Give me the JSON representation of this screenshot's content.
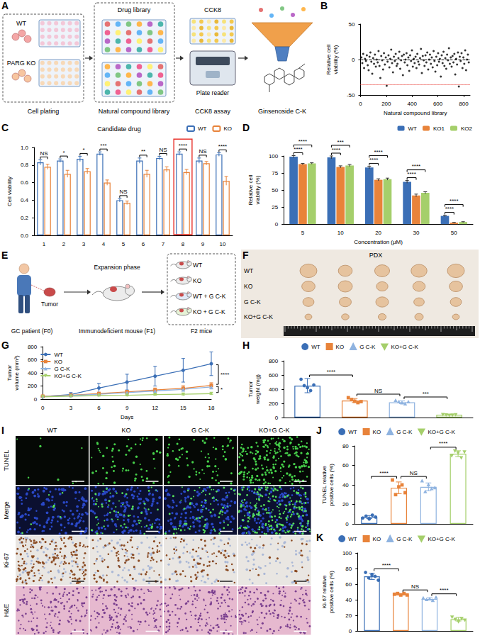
{
  "chart_data": [
    {
      "panel": "B",
      "type": "scatter",
      "x_label": "Natural compound library",
      "y_label": "Relative cell viability (%)",
      "x": [
        7,
        14,
        21,
        28,
        35,
        42,
        49,
        56,
        63,
        70,
        77,
        84,
        91,
        98,
        105,
        112,
        119,
        126,
        133,
        140,
        147,
        154,
        161,
        168,
        175,
        182,
        189,
        196,
        203,
        210,
        217,
        224,
        231,
        238,
        245,
        252,
        259,
        266,
        273,
        280,
        287,
        294,
        301,
        308,
        315,
        322,
        329,
        336,
        343,
        350,
        357,
        364,
        371,
        378,
        385,
        392,
        399,
        406,
        413,
        420,
        427,
        434,
        441,
        448,
        455,
        462,
        469,
        476,
        483,
        490,
        497,
        504,
        511,
        518,
        525,
        532,
        539,
        546,
        553,
        560,
        567,
        574,
        581,
        588,
        595,
        602,
        609,
        616,
        623,
        630,
        637,
        644,
        651,
        658,
        665,
        672,
        679,
        686,
        693,
        700,
        707,
        714,
        721,
        728,
        735,
        742,
        749,
        756,
        763,
        770,
        777,
        784,
        791,
        798,
        805,
        812,
        819,
        826,
        833,
        840
      ],
      "values": [
        3,
        -5,
        8,
        -12,
        1,
        -2,
        6,
        -8,
        -15,
        4,
        10,
        -3,
        -20,
        2,
        -6,
        7,
        -10,
        0,
        -4,
        12,
        -9,
        -26,
        5,
        -1,
        -14,
        9,
        -7,
        3,
        -37,
        -3,
        6,
        -11,
        1,
        14,
        -5,
        -18,
        4,
        -2,
        8,
        -9,
        -6,
        2,
        11,
        -13,
        -1,
        5,
        -22,
        7,
        -4,
        0,
        9,
        -8,
        3,
        -16,
        6,
        -2,
        13,
        -10,
        1,
        -5,
        4,
        -12,
        8,
        -3,
        -7,
        2,
        15,
        -19,
        5,
        -1,
        -9,
        6,
        -4,
        10,
        -14,
        0,
        7,
        -6,
        3,
        -11,
        12,
        -2,
        -17,
        4,
        -8,
        9,
        -3,
        1,
        -24,
        6,
        -5,
        11,
        -9,
        2,
        -13,
        7,
        -1,
        16,
        -6,
        3,
        -10,
        5,
        -4,
        8,
        -21,
        1,
        -7,
        10,
        -38,
        4,
        -2,
        9,
        -12,
        3,
        -6,
        13,
        -15,
        0,
        7,
        -4
      ],
      "color": "#000000",
      "xlim": [
        0,
        850
      ],
      "xticks": [
        0,
        200,
        400,
        600,
        800
      ],
      "ylim": [
        -50,
        50
      ],
      "yticks": [
        -50,
        0,
        50
      ],
      "reference_lines": [
        {
          "value": 0,
          "color": "#000000",
          "line_style": "dashed"
        },
        {
          "value": -35,
          "color": "#e8322b",
          "line_style": "dotted"
        }
      ]
    },
    {
      "panel": "C",
      "type": "bar",
      "title": "Candidate drug",
      "y_label": "Cell viability",
      "categories": [
        "1",
        "2",
        "3",
        "4",
        "5",
        "6",
        "7",
        "8",
        "9",
        "10"
      ],
      "series": [
        {
          "name": "WT",
          "color": "#3b6fb6",
          "values": [
            0.83,
            0.85,
            0.87,
            0.93,
            0.4,
            0.85,
            0.88,
            0.93,
            0.85,
            0.92
          ],
          "errors": [
            0.03,
            0.02,
            0.03,
            0.02,
            0.02,
            0.03,
            0.02,
            0.02,
            0.03,
            0.02
          ]
        },
        {
          "name": "KO",
          "color": "#e8833a",
          "values": [
            0.78,
            0.7,
            0.73,
            0.6,
            0.37,
            0.7,
            0.75,
            0.72,
            0.82,
            0.62
          ],
          "errors": [
            0.03,
            0.04,
            0.03,
            0.03,
            0.02,
            0.04,
            0.03,
            0.03,
            0.02,
            0.05
          ]
        }
      ],
      "ylim": [
        0,
        1
      ],
      "yticks": [
        {
          "value": 0,
          "label": "0.0"
        },
        0.2,
        0.4,
        0.6,
        0.8,
        {
          "value": 1,
          "label": "1.0"
        }
      ],
      "legend": "top-right",
      "comparisons": [
        {
          "category": "1",
          "pair": [
            "WT",
            "KO"
          ],
          "label": "NS"
        },
        {
          "category": "2",
          "pair": [
            "WT",
            "KO"
          ],
          "label": "*"
        },
        {
          "category": "3",
          "pair": [
            "WT",
            "KO"
          ],
          "label": "*"
        },
        {
          "category": "4",
          "pair": [
            "WT",
            "KO"
          ],
          "label": "***"
        },
        {
          "category": "5",
          "pair": [
            "WT",
            "KO"
          ],
          "label": "NS"
        },
        {
          "category": "6",
          "pair": [
            "WT",
            "KO"
          ],
          "label": "**"
        },
        {
          "category": "7",
          "pair": [
            "WT",
            "KO"
          ],
          "label": "NS"
        },
        {
          "category": "8",
          "pair": [
            "WT",
            "KO"
          ],
          "label": "****"
        },
        {
          "category": "9",
          "pair": [
            "WT",
            "KO"
          ],
          "label": "NS"
        },
        {
          "category": "10",
          "pair": [
            "WT",
            "KO"
          ],
          "label": "****"
        }
      ],
      "highlight": {
        "category": "8",
        "color": "#e8322b"
      }
    },
    {
      "panel": "D",
      "type": "bar",
      "x_label": "Concentration (μM)",
      "y_label": "Relative cell viability (%)",
      "categories": [
        "5",
        "10",
        "20",
        "30",
        "50"
      ],
      "series": [
        {
          "name": "WT",
          "color": "#3b6fb6",
          "values": [
            99,
            98,
            83,
            62,
            12
          ],
          "errors": [
            1.5,
            2,
            2,
            2,
            1
          ]
        },
        {
          "name": "KO1",
          "color": "#e8833a",
          "values": [
            88,
            84,
            65,
            42,
            2
          ],
          "errors": [
            1,
            1.5,
            1.5,
            2,
            0.5
          ]
        },
        {
          "name": "KO2",
          "color": "#a5cf6b",
          "values": [
            89,
            86,
            66,
            46,
            3
          ],
          "errors": [
            1,
            1.5,
            1.5,
            1.5,
            0.5
          ]
        }
      ],
      "ylim": [
        0,
        100
      ],
      "yticks": [
        0,
        25,
        50,
        75,
        100
      ],
      "legend": "top-right",
      "comparisons": [
        {
          "category": "5",
          "pair": [
            "WT",
            "KO1"
          ],
          "label": "****"
        },
        {
          "category": "5",
          "pair": [
            "WT",
            "KO2"
          ],
          "label": "****"
        },
        {
          "category": "10",
          "pair": [
            "WT",
            "KO1"
          ],
          "label": "****"
        },
        {
          "category": "10",
          "pair": [
            "WT",
            "KO2"
          ],
          "label": "***"
        },
        {
          "category": "20",
          "pair": [
            "WT",
            "KO1"
          ],
          "label": "****"
        },
        {
          "category": "20",
          "pair": [
            "WT",
            "KO2"
          ],
          "label": "****"
        },
        {
          "category": "30",
          "pair": [
            "WT",
            "KO1"
          ],
          "label": "****"
        },
        {
          "category": "30",
          "pair": [
            "WT",
            "KO2"
          ],
          "label": "****"
        },
        {
          "category": "50",
          "pair": [
            "WT",
            "KO1"
          ],
          "label": "****"
        },
        {
          "category": "50",
          "pair": [
            "WT",
            "KO2"
          ],
          "label": "****"
        }
      ]
    },
    {
      "panel": "G",
      "type": "line",
      "x_label": "Days",
      "y_label": "Tumor volume (mm³)",
      "categories": [
        "0",
        "3",
        "6",
        "9",
        "12",
        "15",
        "18"
      ],
      "series": [
        {
          "name": "WT",
          "color": "#3b6fb6",
          "marker": "circle",
          "values": [
            40,
            70,
            170,
            260,
            350,
            440,
            540
          ],
          "errors": [
            10,
            30,
            70,
            120,
            150,
            180,
            180
          ]
        },
        {
          "name": "KO",
          "color": "#e8833a",
          "marker": "square",
          "values": [
            45,
            60,
            85,
            110,
            140,
            165,
            210
          ],
          "errors": [
            10,
            15,
            20,
            25,
            30,
            40,
            40
          ]
        },
        {
          "name": "G C-K",
          "color": "#8fb3e0",
          "marker": "triangle",
          "values": [
            40,
            55,
            75,
            100,
            125,
            150,
            185
          ],
          "errors": [
            8,
            12,
            15,
            20,
            25,
            30,
            30
          ]
        },
        {
          "name": "KO+G C-K",
          "color": "#a5cf6b",
          "marker": "inverted_triangle",
          "values": [
            35,
            45,
            55,
            60,
            70,
            75,
            85
          ],
          "errors": [
            5,
            8,
            8,
            10,
            10,
            12,
            12
          ]
        }
      ],
      "ylim": [
        0,
        800
      ],
      "yticks": [
        0,
        200,
        400,
        600,
        800
      ],
      "legend": "top-left",
      "comparisons": [
        {
          "pair": [
            "WT",
            "KO"
          ],
          "label": "****"
        },
        {
          "pair": [
            "KO",
            "KO+G C-K"
          ],
          "label": "*"
        }
      ]
    },
    {
      "panel": "H",
      "type": "bar",
      "y_label": "Tumor weight (mg)",
      "tick_labels": "y",
      "legend": "top",
      "ylim": [
        0,
        800
      ],
      "yticks": [
        0,
        200,
        400,
        600,
        800
      ],
      "series": [
        {
          "name": "WT",
          "color": "#3b6fb6",
          "marker": "circle",
          "mean": 450,
          "error": 100,
          "points": [
            540,
            450,
            420,
            380,
            460
          ]
        },
        {
          "name": "KO",
          "color": "#e8833a",
          "marker": "square",
          "mean": 240,
          "error": 28,
          "points": [
            280,
            255,
            230,
            210,
            225
          ]
        },
        {
          "name": "G C-K",
          "color": "#8fb3e0",
          "marker": "triangle",
          "mean": 215,
          "error": 19,
          "points": [
            240,
            220,
            205,
            190,
            220
          ]
        },
        {
          "name": "KO+G C-K",
          "color": "#a5cf6b",
          "marker": "inverted_triangle",
          "mean": 40,
          "error": 4,
          "points": [
            45,
            40,
            35,
            38,
            42
          ]
        }
      ],
      "comparisons": [
        {
          "pair": [
            "WT",
            "KO"
          ],
          "label": "****"
        },
        {
          "pair": [
            "KO",
            "G C-K"
          ],
          "label": "NS"
        },
        {
          "pair": [
            "G C-K",
            "KO+G C-K"
          ],
          "label": "***"
        }
      ]
    },
    {
      "panel": "J",
      "type": "bar",
      "y_label": "TUNEL relative positive cells (%)",
      "tick_labels": "y",
      "legend": "top",
      "ylim": [
        0,
        80
      ],
      "yticks": [
        0,
        20,
        40,
        60,
        80
      ],
      "series": [
        {
          "name": "WT",
          "color": "#3b6fb6",
          "marker": "circle",
          "mean": 7,
          "error": 1.5,
          "points": [
            6,
            8,
            5,
            9,
            7
          ]
        },
        {
          "name": "KO",
          "color": "#e8833a",
          "marker": "square",
          "mean": 37,
          "error": 6,
          "points": [
            45,
            30,
            38,
            40,
            32
          ]
        },
        {
          "name": "G C-K",
          "color": "#8fb3e0",
          "marker": "triangle",
          "mean": 38,
          "error": 4,
          "points": [
            44,
            33,
            40,
            36,
            37
          ]
        },
        {
          "name": "KO+G C-K",
          "color": "#a5cf6b",
          "marker": "inverted_triangle",
          "mean": 72,
          "error": 3,
          "points": [
            70,
            75,
            73,
            68,
            74
          ]
        }
      ],
      "comparisons": [
        {
          "pair": [
            "WT",
            "KO"
          ],
          "label": "****"
        },
        {
          "pair": [
            "KO",
            "G C-K"
          ],
          "label": "NS"
        },
        {
          "pair": [
            "G C-K",
            "KO+G C-K"
          ],
          "label": "****"
        }
      ]
    },
    {
      "panel": "K",
      "type": "bar",
      "y_label": "Ki-67 relative positive cells (%)",
      "tick_labels": "y",
      "legend": "top",
      "ylim": [
        0,
        100
      ],
      "yticks": [
        0,
        20,
        40,
        60,
        80,
        100
      ],
      "series": [
        {
          "name": "WT",
          "color": "#3b6fb6",
          "marker": "circle",
          "mean": 70,
          "error": 4,
          "points": [
            75,
            68,
            72,
            70,
            65
          ]
        },
        {
          "name": "KO",
          "color": "#e8833a",
          "marker": "square",
          "mean": 47,
          "error": 1,
          "points": [
            47,
            48,
            46,
            48,
            46
          ]
        },
        {
          "name": "G C-K",
          "color": "#8fb3e0",
          "marker": "triangle",
          "mean": 41,
          "error": 1.5,
          "points": [
            42,
            40,
            41,
            39,
            43
          ]
        },
        {
          "name": "KO+G C-K",
          "color": "#a5cf6b",
          "marker": "inverted_triangle",
          "mean": 15,
          "error": 2.3,
          "points": [
            18,
            15,
            12,
            16,
            14
          ]
        }
      ],
      "comparisons": [
        {
          "pair": [
            "WT",
            "KO"
          ],
          "label": "****"
        },
        {
          "pair": [
            "KO",
            "G C-K"
          ],
          "label": "NS"
        },
        {
          "pair": [
            "G C-K",
            "KO+G C-K"
          ],
          "label": "****"
        }
      ]
    }
  ],
  "diagrams": {
    "screening": {
      "letter": "A",
      "cell_lines": [
        "WT",
        "PARG KO"
      ],
      "steps": [
        "Cell plating",
        "Natural compound library",
        "CCK8 assay"
      ],
      "library": "Drug library",
      "assay": "CCK8",
      "reader": "Plate reader",
      "result": "Ginsenoside C-K"
    },
    "pdx_model": {
      "letter": "E",
      "tumor": "Tumor",
      "patient": "GC patient (F0)",
      "expansion": "Expansion phase",
      "f1": "Immunodeficient mouse (F1)",
      "f2": "F2 mice",
      "groups": [
        "WT",
        "KO",
        "WT + G C-K",
        "KO + G C-K"
      ]
    },
    "pdx_tumors": {
      "letter": "F",
      "title": "PDX",
      "rows": [
        "WT",
        "KO",
        "G C-K",
        "KO+G C-K"
      ]
    },
    "staining": {
      "letter": "I",
      "columns": [
        "WT",
        "KO",
        "G C-K",
        "KO+G C-K"
      ],
      "rows": [
        "TUNEL",
        "Merge",
        "Ki-67",
        "H&E"
      ]
    }
  }
}
